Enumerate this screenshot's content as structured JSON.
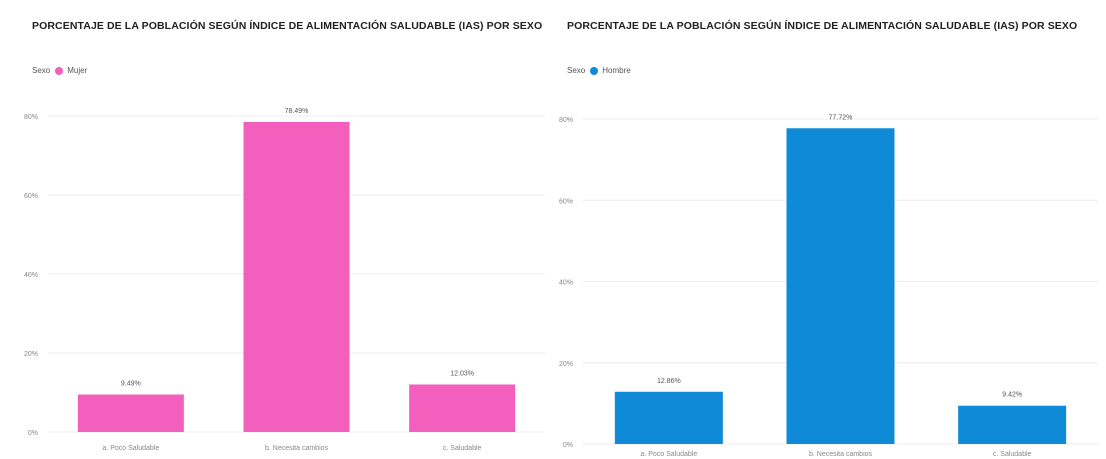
{
  "chart_data": [
    {
      "type": "bar",
      "title": "PORCENTAJE DE LA POBLACIÓN SEGÚN ÍNDICE DE ALIMENTACIÓN SALUDABLE (IAS) POR SEXO",
      "legend_title": "Sexo",
      "legend_label": "Mujer",
      "color": "#f25fbd",
      "categories": [
        "a. Poco Saludable",
        "b. Necesita cambios",
        "c. Saludable"
      ],
      "values": [
        9.49,
        78.49,
        12.03
      ],
      "data_labels": [
        "9.49%",
        "78.49%",
        "12.03%"
      ],
      "ylim": [
        0,
        80
      ],
      "yticks": [
        0,
        20,
        40,
        60,
        80
      ],
      "ytick_labels": [
        "0%",
        "20%",
        "40%",
        "60%",
        "80%"
      ],
      "grid": true,
      "legend_position": "top-left"
    },
    {
      "type": "bar",
      "title": "PORCENTAJE DE LA POBLACIÓN SEGÚN ÍNDICE DE ALIMENTACIÓN SALUDABLE (IAS) POR SEXO",
      "legend_title": "Sexo",
      "legend_label": "Hombre",
      "color": "#0f8ad6",
      "categories": [
        "a. Poco Saludable",
        "b. Necesita cambios",
        "c. Saludable"
      ],
      "values": [
        12.86,
        77.72,
        9.42
      ],
      "data_labels": [
        "12.86%",
        "77.72%",
        "9.42%"
      ],
      "ylim": [
        0,
        80
      ],
      "yticks": [
        0,
        20,
        40,
        60,
        80
      ],
      "ytick_labels": [
        "0%",
        "20%",
        "40%",
        "60%",
        "80%"
      ],
      "grid": true,
      "legend_position": "top-left"
    }
  ]
}
